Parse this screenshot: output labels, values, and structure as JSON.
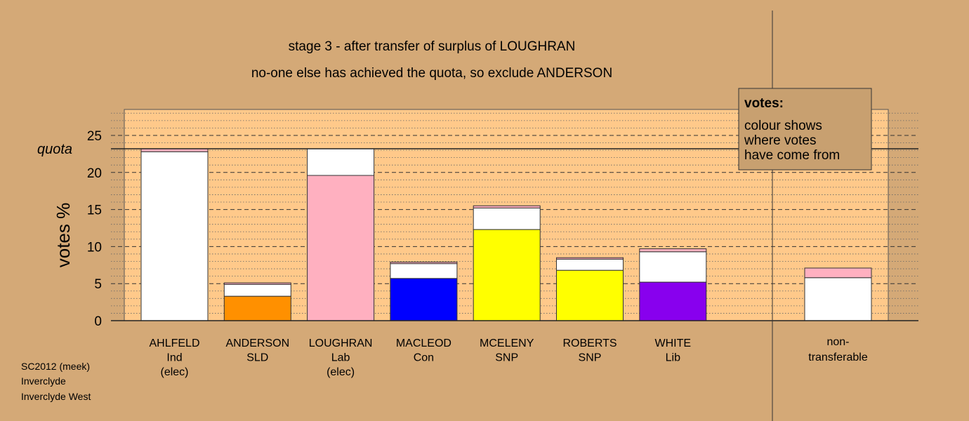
{
  "title": "stage 3 - after transfer of surplus of LOUGHRAN",
  "subtitle": "no-one else has achieved the quota, so exclude ANDERSON",
  "footer": [
    "SC2012 (meek)",
    "Inverclyde",
    "Inverclyde West"
  ],
  "legend_box": {
    "heading": "votes:",
    "lines": [
      "colour shows",
      "where votes",
      "have come from"
    ]
  },
  "colors": {
    "background": "#d4a977",
    "plot_fill": "#ffc98a",
    "legend_fill": "#c8a070",
    "ind": "#ffffff",
    "sld": "#ff9000",
    "lab": "#ffb0c0",
    "con": "#0000ff",
    "snp": "#ffff00",
    "lib": "#8800ee",
    "transfer": "#ffffff"
  },
  "chart_data": {
    "type": "bar",
    "stacked": true,
    "ylabel": "votes %",
    "ylim": [
      0,
      28.5
    ],
    "yticks": [
      0,
      5,
      10,
      15,
      20,
      25
    ],
    "quota_label": "quota",
    "quota": 23.2,
    "grid": "dotted minor, dashed major",
    "legend_position": "top-right",
    "candidates": [
      {
        "name": "AHLFELD",
        "party": "Ind",
        "status": "(elec)",
        "segments": [
          {
            "source": "first preferences",
            "value": 22.8,
            "color": "#ffffff"
          },
          {
            "source": "LOUGHRAN transfer",
            "value": 0.4,
            "color": "#ffb0c0"
          }
        ]
      },
      {
        "name": "ANDERSON",
        "party": "SLD",
        "status": "",
        "segments": [
          {
            "source": "first preferences",
            "value": 3.3,
            "color": "#ff9000"
          },
          {
            "source": "AHLFELD transfer",
            "value": 1.6,
            "color": "#ffffff"
          },
          {
            "source": "LOUGHRAN transfer",
            "value": 0.2,
            "color": "#ffb0c0"
          }
        ]
      },
      {
        "name": "LOUGHRAN",
        "party": "Lab",
        "status": "(elec)",
        "segments": [
          {
            "source": "first preferences",
            "value": 19.6,
            "color": "#ffb0c0"
          },
          {
            "source": "AHLFELD transfer",
            "value": 3.6,
            "color": "#ffffff"
          }
        ]
      },
      {
        "name": "MACLEOD",
        "party": "Con",
        "status": "",
        "segments": [
          {
            "source": "first preferences",
            "value": 5.7,
            "color": "#0000ff"
          },
          {
            "source": "AHLFELD transfer",
            "value": 2.0,
            "color": "#ffffff"
          },
          {
            "source": "LOUGHRAN transfer",
            "value": 0.2,
            "color": "#ffb0c0"
          }
        ]
      },
      {
        "name": "MCELENY",
        "party": "SNP",
        "status": "",
        "segments": [
          {
            "source": "first preferences",
            "value": 12.3,
            "color": "#ffff00"
          },
          {
            "source": "AHLFELD transfer",
            "value": 2.9,
            "color": "#ffffff"
          },
          {
            "source": "LOUGHRAN transfer",
            "value": 0.3,
            "color": "#ffb0c0"
          }
        ]
      },
      {
        "name": "ROBERTS",
        "party": "SNP",
        "status": "",
        "segments": [
          {
            "source": "first preferences",
            "value": 6.8,
            "color": "#ffff00"
          },
          {
            "source": "AHLFELD transfer",
            "value": 1.5,
            "color": "#ffffff"
          },
          {
            "source": "LOUGHRAN transfer",
            "value": 0.2,
            "color": "#ffb0c0"
          }
        ]
      },
      {
        "name": "WHITE",
        "party": "Lib",
        "status": "",
        "segments": [
          {
            "source": "first preferences",
            "value": 5.2,
            "color": "#8800ee"
          },
          {
            "source": "AHLFELD transfer",
            "value": 4.1,
            "color": "#ffffff"
          },
          {
            "source": "LOUGHRAN transfer",
            "value": 0.4,
            "color": "#ffb0c0"
          }
        ]
      }
    ],
    "nontransferable": {
      "label": [
        "non-",
        "transferable"
      ],
      "segments": [
        {
          "source": "AHLFELD",
          "value": 5.8,
          "color": "#ffffff"
        },
        {
          "source": "LOUGHRAN",
          "value": 1.3,
          "color": "#ffb0c0"
        }
      ]
    }
  }
}
